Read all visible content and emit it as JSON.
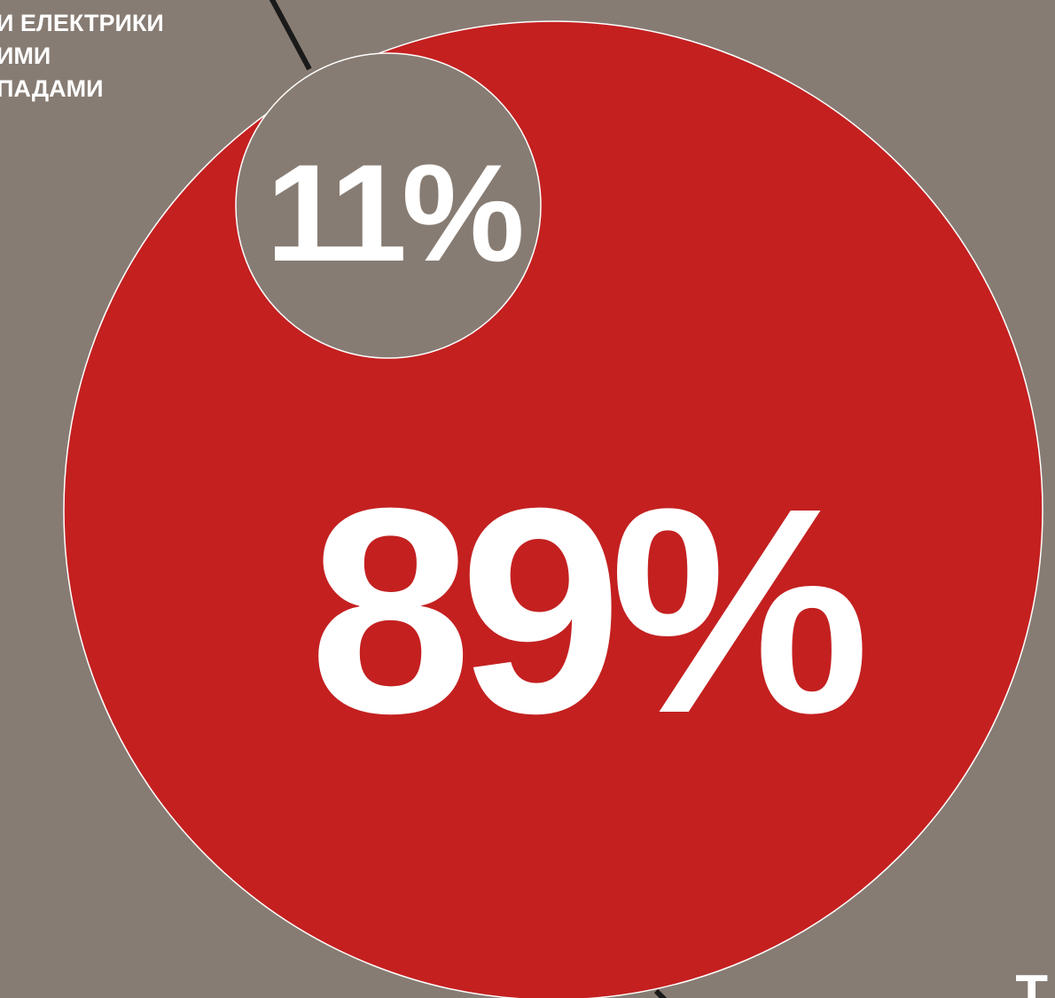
{
  "chart_data": {
    "type": "pie",
    "slices": [
      {
        "label": "89%",
        "value": 89,
        "color": "#c42020"
      },
      {
        "label": "11%",
        "value": 11,
        "color": "#877c73"
      }
    ],
    "annotations": [
      {
        "text": "И ЕЛЕКТРИКИ"
      },
      {
        "text": "ИМИ"
      },
      {
        "text": "ПАДАМИ"
      }
    ],
    "corner_text": "Т"
  },
  "colors": {
    "background": "#877c73",
    "major": "#c42020",
    "minor": "#877c73",
    "stroke": "#ffffff",
    "leader": "#1a1a1a",
    "text": "#ffffff"
  }
}
